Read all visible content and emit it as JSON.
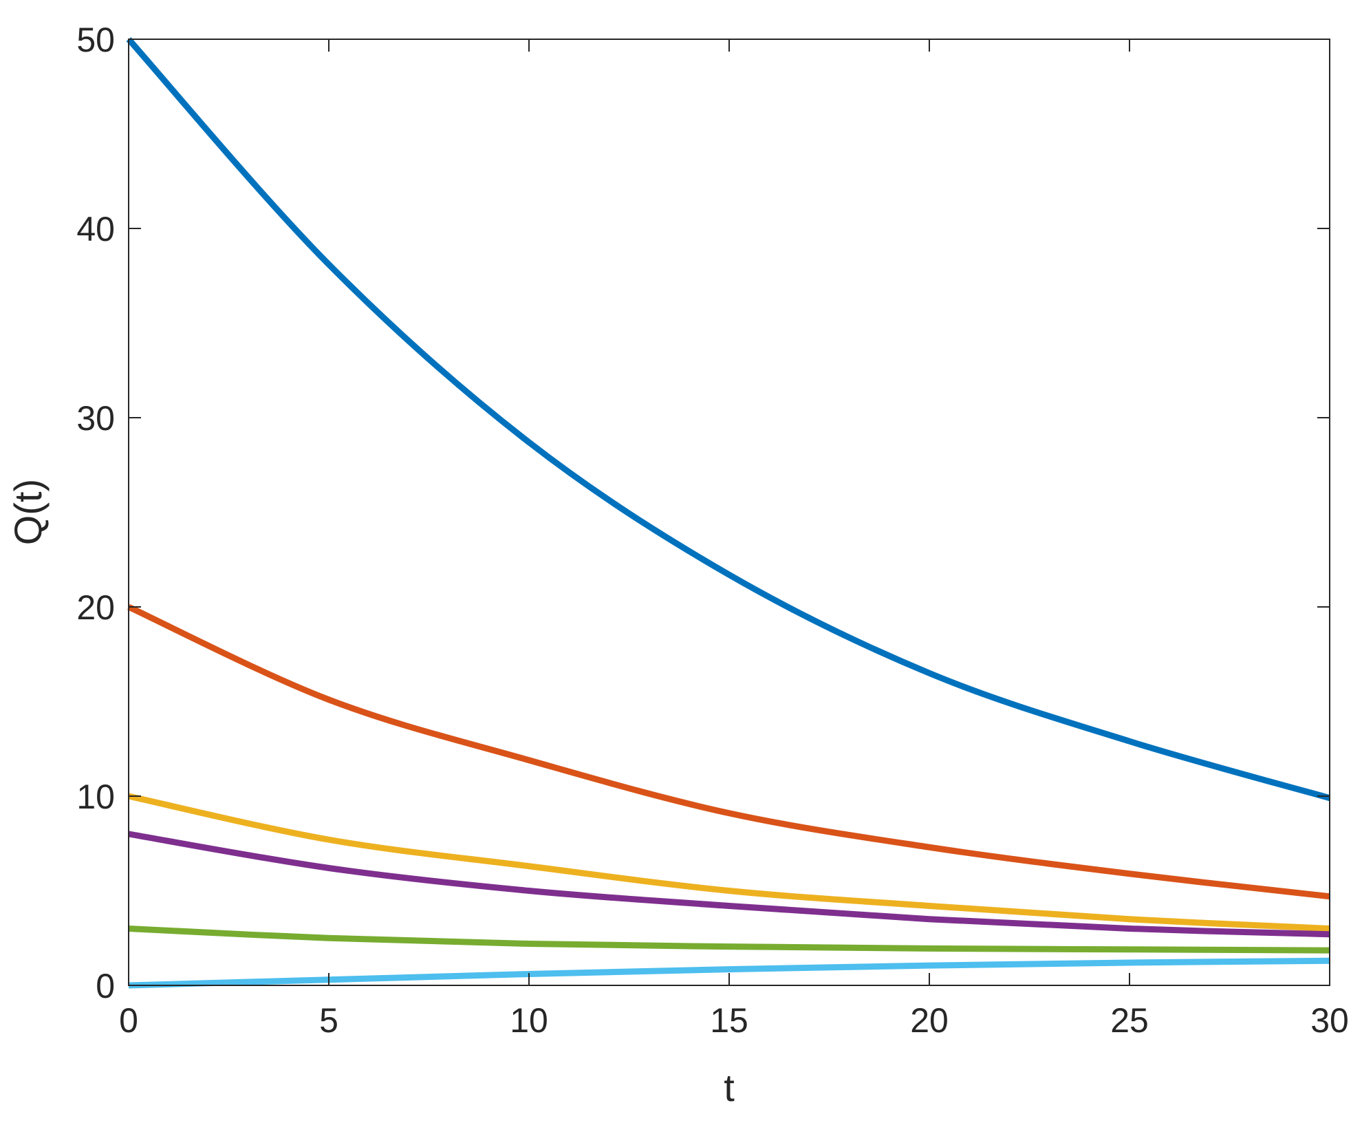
{
  "chart_data": {
    "type": "line",
    "title": "",
    "xlabel": "t",
    "ylabel": "Q(t)",
    "xlim": [
      0,
      30
    ],
    "ylim": [
      0,
      50
    ],
    "xticks": [
      0,
      5,
      10,
      15,
      20,
      25,
      30
    ],
    "yticks": [
      0,
      10,
      20,
      30,
      40,
      50
    ],
    "grid": false,
    "box": true,
    "x": [
      0,
      5,
      10,
      15,
      20,
      25,
      30
    ],
    "series": [
      {
        "color": "#0072BD",
        "values": [
          50,
          38.1,
          28.7,
          21.7,
          16.5,
          12.9,
          9.9
        ]
      },
      {
        "color": "#D95319",
        "values": [
          20,
          15.1,
          11.9,
          9.1,
          7.3,
          5.9,
          4.7
        ]
      },
      {
        "color": "#EDB120",
        "values": [
          10,
          7.7,
          6.3,
          5.0,
          4.2,
          3.5,
          3.0
        ]
      },
      {
        "color": "#7E2F8E",
        "values": [
          8,
          6.2,
          5.0,
          4.2,
          3.5,
          3.0,
          2.7
        ]
      },
      {
        "color": "#77AC30",
        "values": [
          3,
          2.5,
          2.2,
          2.05,
          1.95,
          1.9,
          1.85
        ]
      },
      {
        "color": "#4DBEEE",
        "values": [
          0,
          0.3,
          0.6,
          0.85,
          1.05,
          1.2,
          1.3
        ]
      }
    ]
  }
}
